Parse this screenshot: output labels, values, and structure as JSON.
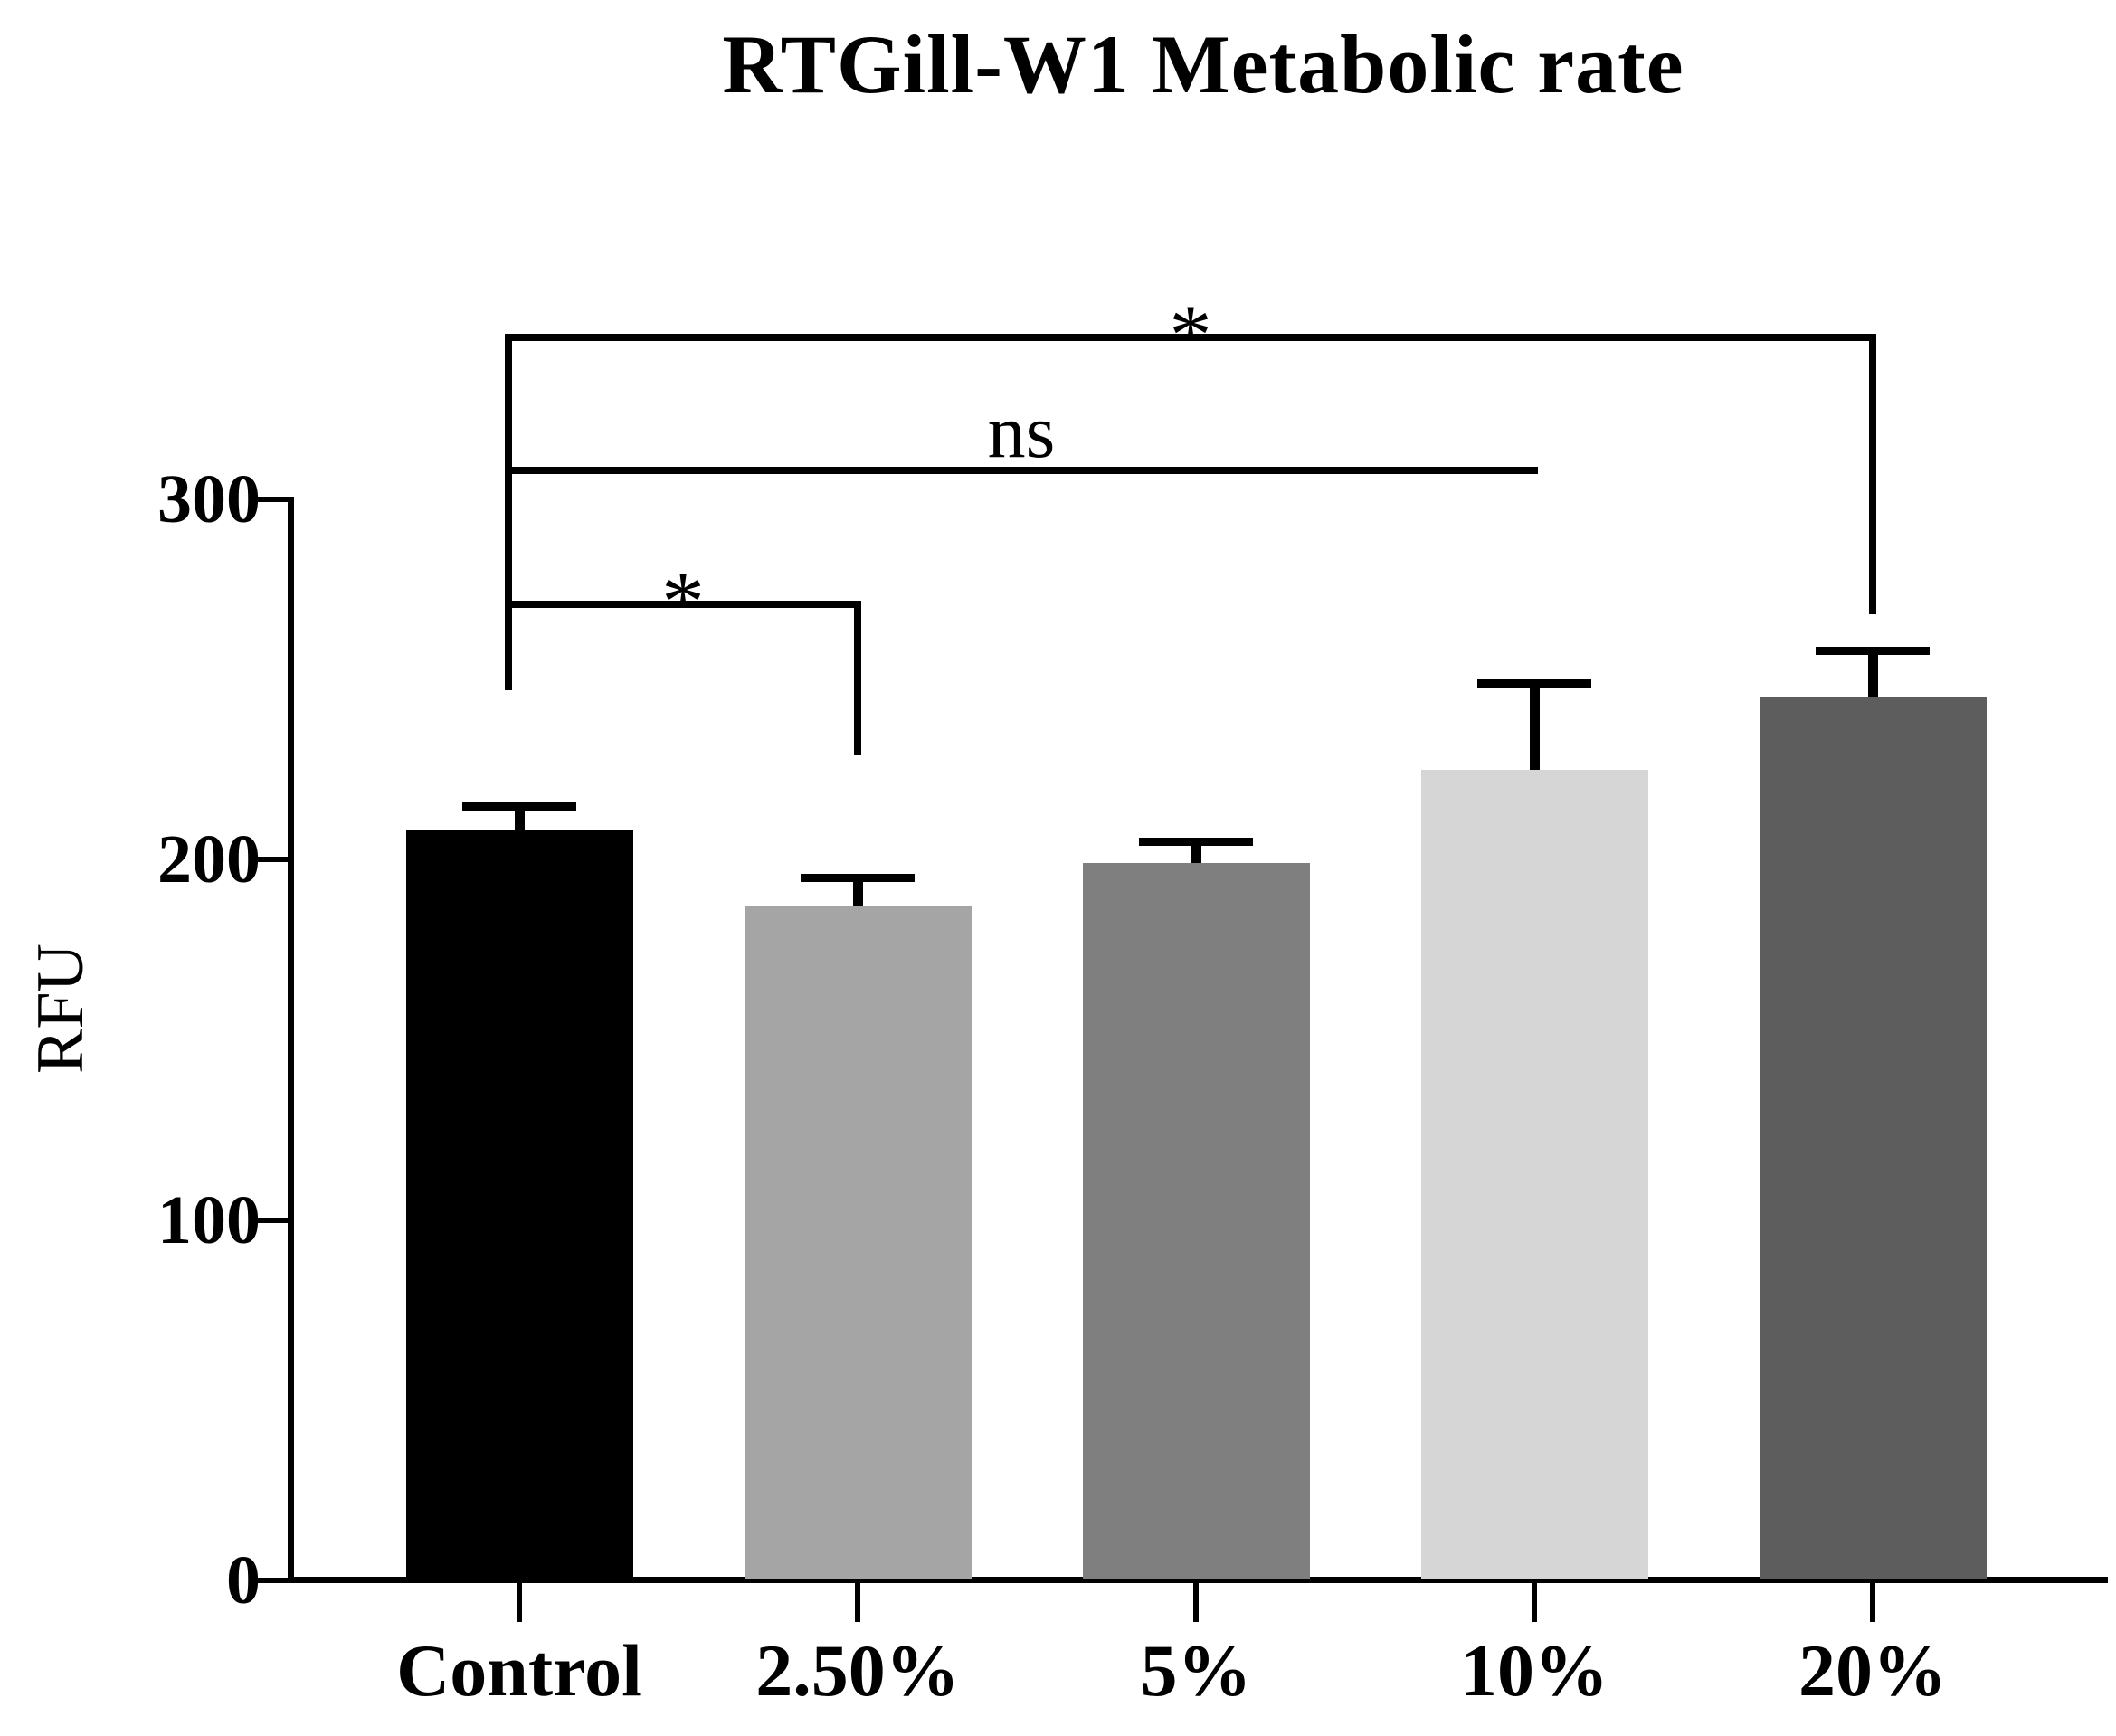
{
  "title": "RTGill-W1 Metabolic rate",
  "chart_data": {
    "type": "bar",
    "title": "RTGill-W1 Metabolic rate",
    "xlabel": "",
    "ylabel": "RFU",
    "ylim": [
      0,
      300
    ],
    "yticks": [
      0,
      100,
      200,
      300
    ],
    "grid": false,
    "legend": false,
    "categories": [
      "Control",
      "2.50%",
      "5%",
      "10%",
      "20%"
    ],
    "values": [
      208,
      187,
      199,
      225,
      245
    ],
    "errors_plus": [
      7,
      8,
      6,
      24,
      13
    ],
    "bar_colors": [
      "#000000",
      "#a5a5a5",
      "#7f7f7f",
      "#d6d6d6",
      "#5d5d5d"
    ],
    "error_color": "#000000",
    "significance_brackets": [
      {
        "label": "*",
        "from_index": 0,
        "to_index": 1,
        "level": 271,
        "right_tail_level": 230
      },
      {
        "label": "ns",
        "from_index": 0,
        "to_index": 3,
        "level": 308,
        "right_tail_level": null
      },
      {
        "label": "*",
        "from_index": 0,
        "to_index": 4,
        "level": 345,
        "right_tail_level": 269
      }
    ],
    "shared_left_stem": {
      "at_index": 0,
      "top_level": 345,
      "bottom_level": 248
    }
  }
}
